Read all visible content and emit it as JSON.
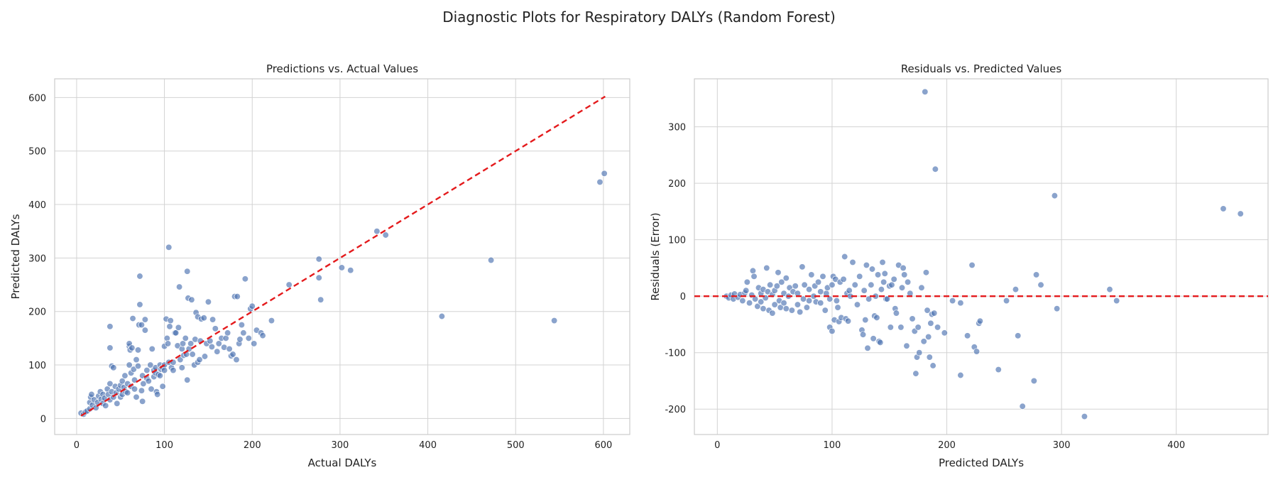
{
  "figure": {
    "suptitle": "Diagnostic Plots for Respiratory DALYs (Random Forest)"
  },
  "colors": {
    "points": "#4c72b0",
    "refline": "#e41a1c",
    "grid": "#d3d3d3",
    "frame": "#cccccc",
    "text": "#222222"
  },
  "chart_data": [
    {
      "type": "scatter",
      "title": "Predictions vs. Actual Values",
      "xlabel": "Actual DALYs",
      "ylabel": "Predicted DALYs",
      "xlim": [
        -25,
        630
      ],
      "ylim": [
        -30,
        635
      ],
      "xticks": [
        0,
        100,
        200,
        300,
        400,
        500,
        600
      ],
      "yticks": [
        0,
        100,
        200,
        300,
        400,
        500,
        600
      ],
      "grid": true,
      "reference_line": {
        "style": "dashed",
        "from": [
          5,
          5
        ],
        "to": [
          602,
          602
        ]
      },
      "points": [
        [
          5,
          10
        ],
        [
          8,
          8
        ],
        [
          10,
          12
        ],
        [
          12,
          14
        ],
        [
          15,
          18
        ],
        [
          15,
          30
        ],
        [
          16,
          40
        ],
        [
          17,
          45
        ],
        [
          18,
          25
        ],
        [
          20,
          35
        ],
        [
          22,
          20
        ],
        [
          24,
          30
        ],
        [
          25,
          42
        ],
        [
          27,
          50
        ],
        [
          28,
          36
        ],
        [
          30,
          45
        ],
        [
          30,
          28
        ],
        [
          32,
          38
        ],
        [
          33,
          24
        ],
        [
          35,
          55
        ],
        [
          36,
          45
        ],
        [
          38,
          35
        ],
        [
          38,
          65
        ],
        [
          38,
          172
        ],
        [
          38,
          132
        ],
        [
          40,
          50
        ],
        [
          40,
          98
        ],
        [
          42,
          40
        ],
        [
          42,
          95
        ],
        [
          44,
          60
        ],
        [
          45,
          48
        ],
        [
          46,
          28
        ],
        [
          48,
          55
        ],
        [
          50,
          62
        ],
        [
          50,
          40
        ],
        [
          52,
          70
        ],
        [
          52,
          45
        ],
        [
          54,
          58
        ],
        [
          55,
          80
        ],
        [
          56,
          50
        ],
        [
          58,
          65
        ],
        [
          58,
          48
        ],
        [
          60,
          100
        ],
        [
          60,
          135
        ],
        [
          60,
          140
        ],
        [
          61,
          128
        ],
        [
          62,
          85
        ],
        [
          62,
          60
        ],
        [
          63,
          132
        ],
        [
          64,
          187
        ],
        [
          65,
          92
        ],
        [
          66,
          72
        ],
        [
          66,
          55
        ],
        [
          68,
          110
        ],
        [
          68,
          40
        ],
        [
          70,
          128
        ],
        [
          70,
          98
        ],
        [
          71,
          175
        ],
        [
          72,
          213
        ],
        [
          72,
          266
        ],
        [
          74,
          52
        ],
        [
          74,
          175
        ],
        [
          75,
          80
        ],
        [
          75,
          32
        ],
        [
          76,
          65
        ],
        [
          78,
          185
        ],
        [
          78,
          165
        ],
        [
          80,
          90
        ],
        [
          80,
          75
        ],
        [
          82,
          70
        ],
        [
          84,
          100
        ],
        [
          85,
          55
        ],
        [
          86,
          130
        ],
        [
          88,
          90
        ],
        [
          88,
          78
        ],
        [
          90,
          95
        ],
        [
          90,
          85
        ],
        [
          91,
          50
        ],
        [
          92,
          45
        ],
        [
          93,
          82
        ],
        [
          95,
          100
        ],
        [
          95,
          80
        ],
        [
          96,
          92
        ],
        [
          98,
          95
        ],
        [
          98,
          60
        ],
        [
          100,
          100
        ],
        [
          100,
          90
        ],
        [
          100,
          135
        ],
        [
          102,
          186
        ],
        [
          103,
          150
        ],
        [
          104,
          140
        ],
        [
          105,
          320
        ],
        [
          105,
          105
        ],
        [
          106,
          172
        ],
        [
          107,
          183
        ],
        [
          108,
          95
        ],
        [
          110,
          90
        ],
        [
          110,
          105
        ],
        [
          112,
          160
        ],
        [
          113,
          160
        ],
        [
          115,
          136
        ],
        [
          116,
          170
        ],
        [
          117,
          246
        ],
        [
          118,
          110
        ],
        [
          120,
          95
        ],
        [
          120,
          130
        ],
        [
          121,
          140
        ],
        [
          122,
          118
        ],
        [
          124,
          150
        ],
        [
          125,
          120
        ],
        [
          126,
          72
        ],
        [
          126,
          275
        ],
        [
          127,
          225
        ],
        [
          128,
          130
        ],
        [
          130,
          140
        ],
        [
          131,
          222
        ],
        [
          132,
          120
        ],
        [
          134,
          100
        ],
        [
          135,
          148
        ],
        [
          136,
          198
        ],
        [
          138,
          190
        ],
        [
          138,
          105
        ],
        [
          140,
          110
        ],
        [
          141,
          145
        ],
        [
          142,
          186
        ],
        [
          145,
          188
        ],
        [
          146,
          116
        ],
        [
          148,
          140
        ],
        [
          150,
          218
        ],
        [
          152,
          145
        ],
        [
          154,
          134
        ],
        [
          155,
          185
        ],
        [
          158,
          168
        ],
        [
          160,
          125
        ],
        [
          162,
          140
        ],
        [
          165,
          150
        ],
        [
          168,
          133
        ],
        [
          170,
          150
        ],
        [
          172,
          160
        ],
        [
          174,
          130
        ],
        [
          176,
          117
        ],
        [
          178,
          120
        ],
        [
          180,
          228
        ],
        [
          182,
          110
        ],
        [
          183,
          228
        ],
        [
          185,
          140
        ],
        [
          186,
          148
        ],
        [
          188,
          175
        ],
        [
          190,
          160
        ],
        [
          192,
          261
        ],
        [
          196,
          150
        ],
        [
          198,
          205
        ],
        [
          200,
          210
        ],
        [
          202,
          140
        ],
        [
          205,
          165
        ],
        [
          210,
          160
        ],
        [
          212,
          155
        ],
        [
          222,
          183
        ],
        [
          242,
          250
        ],
        [
          276,
          298
        ],
        [
          276,
          263
        ],
        [
          278,
          222
        ],
        [
          302,
          282
        ],
        [
          312,
          277
        ],
        [
          342,
          350
        ],
        [
          352,
          343
        ],
        [
          416,
          191
        ],
        [
          472,
          296
        ],
        [
          544,
          183
        ],
        [
          596,
          442
        ],
        [
          601,
          458
        ]
      ]
    },
    {
      "type": "scatter",
      "title": "Residuals vs. Predicted Values",
      "xlabel": "Predicted DALYs",
      "ylabel": "Residuals (Error)",
      "xlim": [
        -20,
        480
      ],
      "ylim": [
        -245,
        385
      ],
      "xticks": [
        0,
        100,
        200,
        300,
        400
      ],
      "yticks": [
        -200,
        -100,
        0,
        100,
        200,
        300
      ],
      "grid": true,
      "reference_line": {
        "style": "dashed",
        "y": 0
      },
      "points": [
        [
          8,
          0
        ],
        [
          10,
          -3
        ],
        [
          12,
          2
        ],
        [
          14,
          -5
        ],
        [
          15,
          4
        ],
        [
          18,
          -2
        ],
        [
          20,
          3
        ],
        [
          22,
          -8
        ],
        [
          24,
          6
        ],
        [
          25,
          10
        ],
        [
          26,
          25
        ],
        [
          28,
          -12
        ],
        [
          30,
          2
        ],
        [
          31,
          45
        ],
        [
          32,
          35
        ],
        [
          33,
          -5
        ],
        [
          35,
          -18
        ],
        [
          36,
          15
        ],
        [
          38,
          -10
        ],
        [
          38,
          5
        ],
        [
          40,
          -22
        ],
        [
          40,
          12
        ],
        [
          42,
          -3
        ],
        [
          43,
          50
        ],
        [
          44,
          8
        ],
        [
          45,
          -25
        ],
        [
          46,
          20
        ],
        [
          48,
          -30
        ],
        [
          48,
          3
        ],
        [
          50,
          10
        ],
        [
          50,
          -15
        ],
        [
          52,
          18
        ],
        [
          53,
          42
        ],
        [
          54,
          -8
        ],
        [
          55,
          -20
        ],
        [
          56,
          25
        ],
        [
          58,
          -12
        ],
        [
          58,
          5
        ],
        [
          60,
          32
        ],
        [
          60,
          -22
        ],
        [
          62,
          0
        ],
        [
          63,
          15
        ],
        [
          65,
          -25
        ],
        [
          66,
          8
        ],
        [
          68,
          18
        ],
        [
          70,
          -15
        ],
        [
          70,
          5
        ],
        [
          72,
          -28
        ],
        [
          74,
          52
        ],
        [
          75,
          -5
        ],
        [
          76,
          20
        ],
        [
          78,
          -20
        ],
        [
          80,
          12
        ],
        [
          80,
          -8
        ],
        [
          82,
          38
        ],
        [
          84,
          0
        ],
        [
          85,
          18
        ],
        [
          86,
          -10
        ],
        [
          88,
          25
        ],
        [
          90,
          -12
        ],
        [
          90,
          8
        ],
        [
          92,
          35
        ],
        [
          94,
          -25
        ],
        [
          95,
          5
        ],
        [
          96,
          15
        ],
        [
          98,
          -55
        ],
        [
          98,
          -5
        ],
        [
          100,
          20
        ],
        [
          100,
          -62
        ],
        [
          101,
          35
        ],
        [
          102,
          -42
        ],
        [
          103,
          30
        ],
        [
          104,
          -8
        ],
        [
          105,
          -20
        ],
        [
          106,
          -45
        ],
        [
          107,
          25
        ],
        [
          108,
          -38
        ],
        [
          110,
          30
        ],
        [
          111,
          70
        ],
        [
          112,
          -40
        ],
        [
          113,
          5
        ],
        [
          114,
          -44
        ],
        [
          115,
          10
        ],
        [
          116,
          0
        ],
        [
          118,
          60
        ],
        [
          120,
          20
        ],
        [
          122,
          -15
        ],
        [
          124,
          35
        ],
        [
          126,
          -60
        ],
        [
          127,
          -68
        ],
        [
          128,
          10
        ],
        [
          129,
          -42
        ],
        [
          130,
          55
        ],
        [
          131,
          -92
        ],
        [
          132,
          -5
        ],
        [
          134,
          20
        ],
        [
          135,
          48
        ],
        [
          136,
          -75
        ],
        [
          137,
          -35
        ],
        [
          138,
          0
        ],
        [
          139,
          -38
        ],
        [
          140,
          38
        ],
        [
          141,
          -80
        ],
        [
          142,
          -82
        ],
        [
          143,
          12
        ],
        [
          144,
          60
        ],
        [
          145,
          25
        ],
        [
          146,
          40
        ],
        [
          147,
          -5
        ],
        [
          148,
          -5
        ],
        [
          150,
          18
        ],
        [
          151,
          -55
        ],
        [
          152,
          20
        ],
        [
          154,
          30
        ],
        [
          155,
          -22
        ],
        [
          156,
          -30
        ],
        [
          158,
          55
        ],
        [
          160,
          -55
        ],
        [
          161,
          15
        ],
        [
          162,
          50
        ],
        [
          163,
          38
        ],
        [
          165,
          -88
        ],
        [
          166,
          25
        ],
        [
          168,
          5
        ],
        [
          170,
          -40
        ],
        [
          172,
          -62
        ],
        [
          173,
          -137
        ],
        [
          174,
          -108
        ],
        [
          175,
          -55
        ],
        [
          176,
          -100
        ],
        [
          178,
          15
        ],
        [
          180,
          -80
        ],
        [
          181,
          362
        ],
        [
          182,
          42
        ],
        [
          183,
          -25
        ],
        [
          184,
          -72
        ],
        [
          185,
          -108
        ],
        [
          186,
          -48
        ],
        [
          187,
          -32
        ],
        [
          188,
          -123
        ],
        [
          189,
          -30
        ],
        [
          190,
          225
        ],
        [
          192,
          -55
        ],
        [
          198,
          -65
        ],
        [
          205,
          -8
        ],
        [
          212,
          -140
        ],
        [
          212,
          -12
        ],
        [
          218,
          -70
        ],
        [
          222,
          55
        ],
        [
          224,
          -90
        ],
        [
          226,
          -98
        ],
        [
          228,
          -48
        ],
        [
          229,
          -44
        ],
        [
          245,
          -130
        ],
        [
          252,
          -8
        ],
        [
          260,
          12
        ],
        [
          262,
          -70
        ],
        [
          266,
          -195
        ],
        [
          276,
          -150
        ],
        [
          278,
          38
        ],
        [
          282,
          20
        ],
        [
          294,
          178
        ],
        [
          296,
          -22
        ],
        [
          320,
          -213
        ],
        [
          342,
          12
        ],
        [
          348,
          -8
        ],
        [
          441,
          155
        ],
        [
          456,
          146
        ]
      ]
    }
  ]
}
